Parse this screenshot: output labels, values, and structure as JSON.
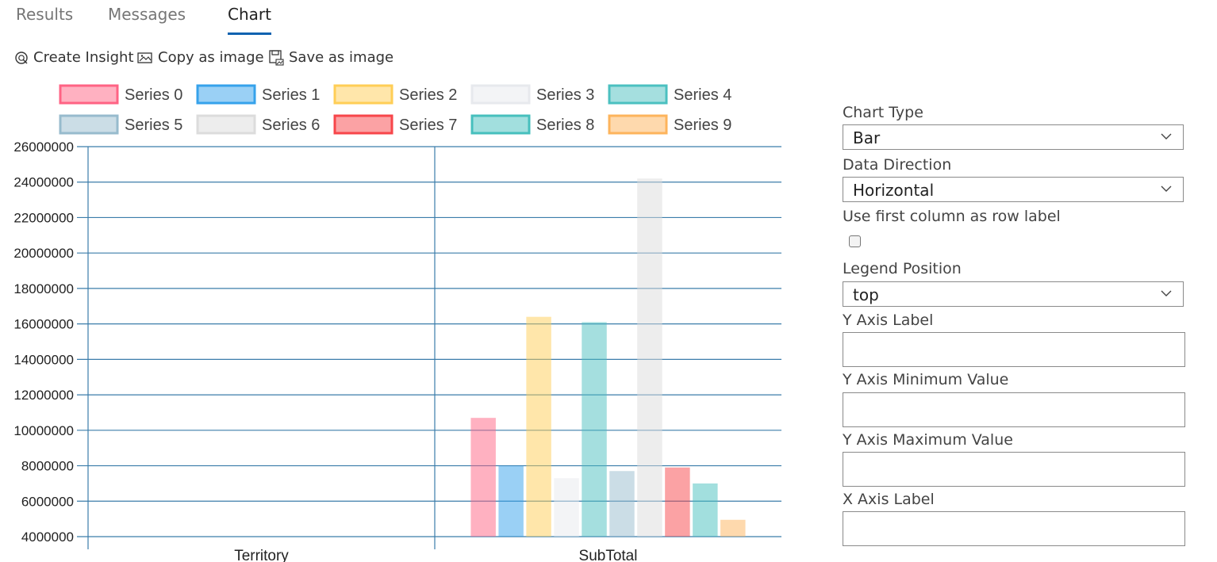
{
  "tabs": [
    {
      "label": "Results",
      "active": false
    },
    {
      "label": "Messages",
      "active": false
    },
    {
      "label": "Chart",
      "active": true
    }
  ],
  "toolbar": {
    "create_insight": "Create Insight",
    "copy_image": "Copy as image",
    "save_image": "Save as image"
  },
  "options": {
    "chart_type_label": "Chart Type",
    "chart_type_value": "Bar",
    "data_direction_label": "Data Direction",
    "data_direction_value": "Horizontal",
    "first_column_label": "Use first column as row label",
    "first_column_checked": false,
    "legend_position_label": "Legend Position",
    "legend_position_value": "top",
    "y_axis_label_label": "Y Axis Label",
    "y_axis_label_value": "",
    "y_min_label": "Y Axis Minimum Value",
    "y_min_value": "",
    "y_max_label": "Y Axis Maximum Value",
    "y_max_value": "",
    "x_axis_label_label": "X Axis Label",
    "x_axis_label_value": ""
  },
  "chart_data": {
    "type": "bar",
    "categories": [
      "Territory",
      "SubTotal"
    ],
    "legend_position": "top",
    "ylim": [
      4000000,
      26000000
    ],
    "yticks": [
      4000000,
      6000000,
      8000000,
      10000000,
      12000000,
      14000000,
      16000000,
      18000000,
      20000000,
      22000000,
      24000000,
      26000000
    ],
    "grid": true,
    "series": [
      {
        "name": "Series 0",
        "color": "#ff6384",
        "values": [
          null,
          10700000
        ]
      },
      {
        "name": "Series 1",
        "color": "#36a2eb",
        "values": [
          null,
          8000000
        ]
      },
      {
        "name": "Series 2",
        "color": "#ffce56",
        "values": [
          null,
          16400000
        ]
      },
      {
        "name": "Series 3",
        "color": "#e7e9ed",
        "values": [
          null,
          7300000
        ]
      },
      {
        "name": "Series 4",
        "color": "#4bc0c0",
        "values": [
          null,
          16100000
        ]
      },
      {
        "name": "Series 5",
        "color": "#97bbcd",
        "values": [
          null,
          7700000
        ]
      },
      {
        "name": "Series 6",
        "color": "#dcdcdc",
        "values": [
          null,
          24200000
        ]
      },
      {
        "name": "Series 7",
        "color": "#f7464a",
        "values": [
          null,
          7900000
        ]
      },
      {
        "name": "Series 8",
        "color": "#46bfbd",
        "values": [
          null,
          7000000
        ]
      },
      {
        "name": "Series 9",
        "color": "#fdb45c",
        "values": [
          null,
          4950000
        ]
      }
    ]
  }
}
